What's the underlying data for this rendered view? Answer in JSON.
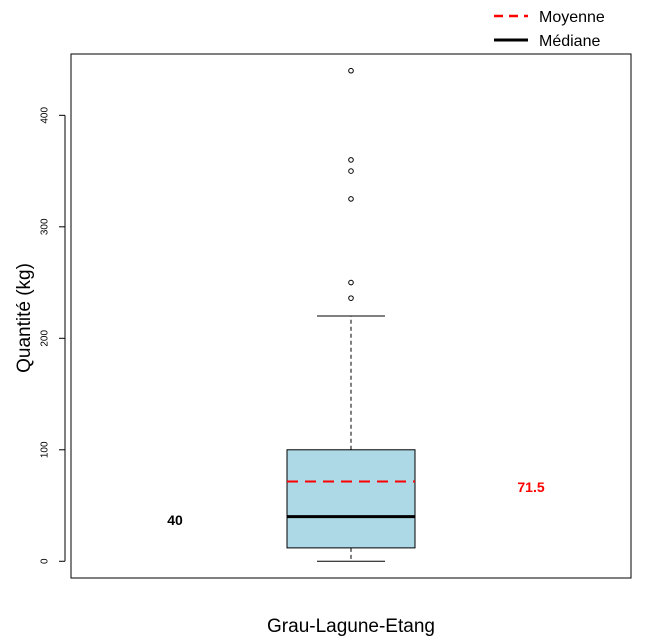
{
  "chart_data": {
    "type": "boxplot",
    "title": "",
    "xlabel": "Grau-Lagune-Etang",
    "ylabel": "Quantité (kg)",
    "ylim": [
      -15,
      455
    ],
    "yticks": [
      0,
      100,
      200,
      300,
      400
    ],
    "grid": false,
    "legend_position": "top-right",
    "legend": [
      {
        "label": "Moyenne",
        "style": "dashed",
        "color": "#ff0000"
      },
      {
        "label": "Médiane",
        "style": "solid",
        "color": "#000000"
      }
    ],
    "box": {
      "category": "Grau-Lagune-Etang",
      "min": 0,
      "q1": 12,
      "median": 40,
      "mean": 71.5,
      "q3": 100,
      "whisker_high": 220,
      "fill": "#add8e6"
    },
    "outliers": [
      236,
      250,
      325,
      350,
      360,
      440
    ],
    "annotations": {
      "median_label": "40",
      "mean_label": "71.5",
      "median_color": "#000000",
      "mean_color": "#ff0000"
    }
  }
}
